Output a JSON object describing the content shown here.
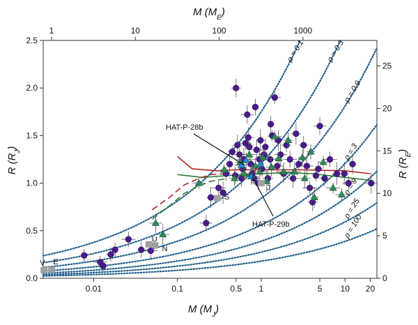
{
  "chart_data": {
    "type": "scatter",
    "axes": {
      "bottom": {
        "label": "M (M_J)",
        "scale": "log",
        "range": [
          0.0025,
          24
        ],
        "ticks": [
          "0.01",
          "0.1",
          "0.5",
          "1",
          "5",
          "10",
          "20"
        ],
        "tick_values": [
          0.01,
          0.1,
          0.5,
          1,
          5,
          10,
          20
        ]
      },
      "top": {
        "label": "M (M_E)",
        "scale": "log",
        "range": [
          0.795,
          7630
        ],
        "ticks": [
          "1",
          "10",
          "100",
          "1000"
        ],
        "tick_values": [
          1,
          10,
          100,
          1000
        ]
      },
      "left": {
        "label": "R (R_J)",
        "scale": "linear",
        "range": [
          0,
          2.5
        ],
        "ticks": [
          "0.0",
          "0.5",
          "1.0",
          "1.5",
          "2.0",
          "2.5"
        ],
        "tick_values": [
          0,
          0.5,
          1.0,
          1.5,
          2.0,
          2.5
        ]
      },
      "right": {
        "label": "R (R_E)",
        "scale": "linear",
        "range": [
          0,
          28
        ],
        "ticks": [
          "0",
          "5",
          "10",
          "15",
          "20",
          "25"
        ],
        "tick_values": [
          0,
          5,
          10,
          15,
          20,
          25
        ]
      }
    },
    "density_curves": {
      "labels": [
        "ρ = 0.1",
        "ρ = 0.3",
        "ρ = 0.9",
        "ρ = 3",
        "ρ = 9",
        "ρ = 25",
        "ρ = 100"
      ],
      "rho_values": [
        0.1,
        0.3,
        0.9,
        3,
        9,
        25,
        100
      ],
      "r_over_m_third": [
        1.75,
        1.21,
        0.84,
        0.56,
        0.39,
        0.275,
        0.18
      ],
      "color": "#1f5f8b"
    },
    "annotations": [
      {
        "text": "HAT-P-28b",
        "target": {
          "m": 0.63,
          "r": 1.19
        }
      },
      {
        "text": "HAT-P-29b",
        "target": {
          "m": 0.78,
          "r": 1.07
        }
      }
    ],
    "solar_system": {
      "color": "#a0a0a0",
      "labels": [
        "V",
        "E",
        "U",
        "N",
        "S",
        "J"
      ],
      "bodies": [
        {
          "m": 0.00256,
          "r": 0.085
        },
        {
          "m": 0.00315,
          "r": 0.089
        },
        {
          "m": 0.0457,
          "r": 0.357
        },
        {
          "m": 0.054,
          "r": 0.346
        },
        {
          "m": 0.299,
          "r": 0.843
        },
        {
          "m": 1.0,
          "r": 1.0
        }
      ]
    },
    "series": [
      {
        "marker": "circle",
        "color": "#4a1a8c",
        "points": [
          [
            0.0077,
            0.24
          ],
          [
            0.012,
            0.17
          ],
          [
            0.013,
            0.13
          ],
          [
            0.016,
            0.25
          ],
          [
            0.018,
            0.3
          ],
          [
            0.026,
            0.41
          ],
          [
            0.037,
            0.3
          ],
          [
            0.048,
            0.29
          ],
          [
            0.22,
            0.58
          ],
          [
            0.25,
            0.85
          ],
          [
            0.31,
            0.95
          ],
          [
            0.35,
            0.9
          ],
          [
            0.42,
            1.2
          ],
          [
            0.45,
            1.33
          ],
          [
            0.49,
            1.08
          ],
          [
            0.5,
            2.0
          ],
          [
            0.52,
            1.4
          ],
          [
            0.55,
            1.3
          ],
          [
            0.58,
            1.05
          ],
          [
            0.6,
            1.15
          ],
          [
            0.62,
            1.25
          ],
          [
            0.65,
            1.42
          ],
          [
            0.68,
            1.72
          ],
          [
            0.72,
            1.38
          ],
          [
            0.75,
            1.2
          ],
          [
            0.78,
            1.1
          ],
          [
            0.82,
            1.05
          ],
          [
            0.85,
            1.8
          ],
          [
            0.88,
            1.35
          ],
          [
            0.92,
            1.0
          ],
          [
            0.95,
            1.25
          ],
          [
            0.98,
            1.45
          ],
          [
            1.02,
            1.15
          ],
          [
            1.08,
            1.3
          ],
          [
            1.12,
            1.38
          ],
          [
            1.2,
            1.05
          ],
          [
            1.28,
            1.25
          ],
          [
            1.35,
            1.5
          ],
          [
            1.45,
            1.9
          ],
          [
            1.55,
            1.18
          ],
          [
            1.7,
            1.3
          ],
          [
            1.85,
            1.1
          ],
          [
            2.0,
            1.4
          ],
          [
            2.2,
            1.25
          ],
          [
            2.4,
            1.05
          ],
          [
            2.8,
            1.2
          ],
          [
            3.2,
            1.4
          ],
          [
            3.8,
            0.95
          ],
          [
            4.1,
            0.8
          ],
          [
            4.5,
            1.08
          ],
          [
            5.0,
            1.6
          ],
          [
            5.7,
            1.05
          ],
          [
            6.6,
            1.25
          ],
          [
            8.0,
            1.1
          ],
          [
            9.8,
            1.1
          ],
          [
            11.0,
            1.0
          ],
          [
            12.3,
            1.2
          ],
          [
            20.5,
            1.0
          ],
          [
            0.38,
            1.1
          ],
          [
            0.7,
            1.48
          ],
          [
            1.3,
            1.62
          ],
          [
            2.6,
            1.52
          ],
          [
            3.5,
            1.18
          ],
          [
            4.8,
            1.15
          ],
          [
            1.6,
            1.45
          ]
        ]
      },
      {
        "marker": "triangle",
        "color": "#2e8b57",
        "points": [
          [
            0.055,
            0.58
          ],
          [
            0.067,
            0.46
          ],
          [
            0.18,
            1.0
          ],
          [
            0.36,
            1.14
          ],
          [
            0.48,
            1.05
          ],
          [
            0.56,
            1.22
          ],
          [
            0.63,
            1.1
          ],
          [
            0.72,
            1.3
          ],
          [
            0.85,
            1.18
          ],
          [
            0.96,
            1.12
          ],
          [
            1.05,
            1.27
          ],
          [
            1.16,
            1.02
          ],
          [
            1.32,
            1.17
          ],
          [
            1.45,
            1.49
          ],
          [
            1.62,
            1.26
          ],
          [
            1.85,
            1.12
          ],
          [
            2.1,
            1.45
          ],
          [
            2.5,
            1.12
          ],
          [
            3.1,
            1.27
          ],
          [
            3.9,
            1.33
          ],
          [
            4.3,
            0.85
          ],
          [
            5.5,
            1.22
          ],
          [
            7.2,
            0.95
          ],
          [
            9.1,
            0.88
          ],
          [
            3.3,
            1.05
          ]
        ]
      },
      {
        "marker": "triangle",
        "color": "#1e90d6",
        "points": [
          [
            0.58,
            1.19
          ],
          [
            0.76,
            1.07
          ],
          [
            0.98,
            1.2
          ],
          [
            0.66,
            1.24
          ]
        ]
      }
    ],
    "model_curves": [
      {
        "color": "#b22222",
        "dash": "solid",
        "points": [
          [
            0.1,
            1.28
          ],
          [
            0.15,
            1.15
          ],
          [
            0.3,
            1.13
          ],
          [
            0.5,
            1.14
          ],
          [
            1,
            1.14
          ],
          [
            3,
            1.14
          ],
          [
            10,
            1.13
          ],
          [
            20,
            1.1
          ]
        ]
      },
      {
        "color": "#2e7d32",
        "dash": "solid",
        "points": [
          [
            0.1,
            1.09
          ],
          [
            0.2,
            1.06
          ],
          [
            0.4,
            1.08
          ],
          [
            0.7,
            1.09
          ],
          [
            1,
            1.1
          ],
          [
            2,
            1.11
          ],
          [
            4,
            1.1
          ],
          [
            8,
            1.07
          ],
          [
            20,
            1.03
          ]
        ]
      },
      {
        "color": "#b22222",
        "dash": "dashed",
        "points": [
          [
            0.05,
            0.72
          ],
          [
            0.08,
            0.85
          ],
          [
            0.12,
            0.98
          ],
          [
            0.18,
            1.05
          ],
          [
            0.25,
            1.09
          ],
          [
            0.4,
            1.1
          ]
        ]
      },
      {
        "color": "#2e7d32",
        "dash": "dashed",
        "points": [
          [
            0.05,
            0.62
          ],
          [
            0.08,
            0.76
          ],
          [
            0.12,
            0.89
          ],
          [
            0.18,
            0.97
          ],
          [
            0.25,
            1.02
          ],
          [
            0.4,
            1.05
          ]
        ]
      }
    ]
  }
}
